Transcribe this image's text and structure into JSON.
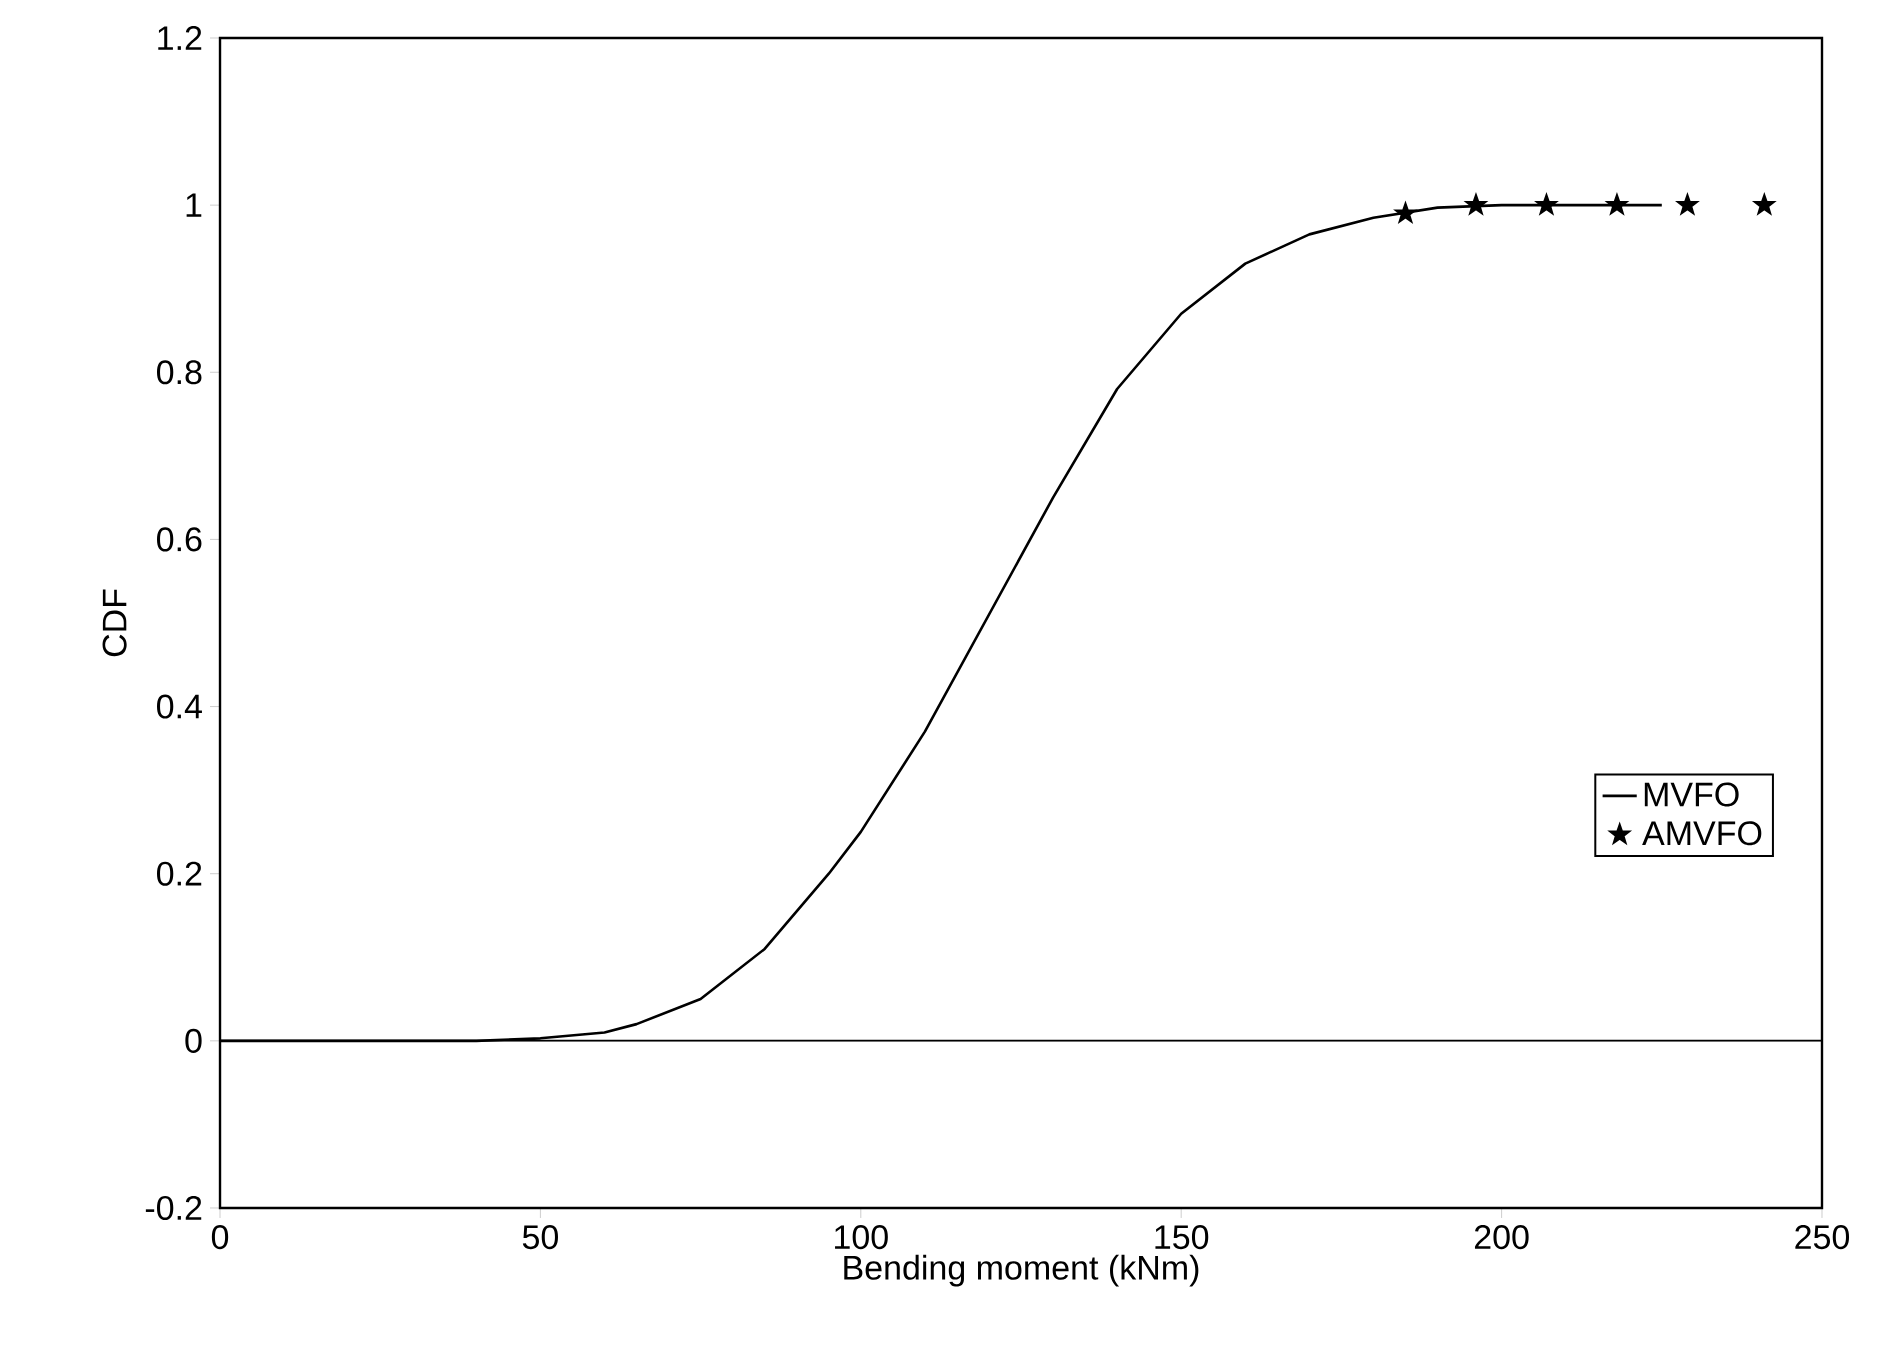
{
  "chart_data": {
    "type": "line",
    "xlabel": "Bending moment (kNm)",
    "ylabel": "CDF",
    "xlim": [
      0,
      250
    ],
    "ylim": [
      -0.2,
      1.2
    ],
    "xticks": [
      0,
      50,
      100,
      150,
      200,
      250
    ],
    "yticks": [
      -0.2,
      0,
      0.2,
      0.4,
      0.6,
      0.8,
      1,
      1.2
    ],
    "legend": "right",
    "grid": false,
    "ref_lines": [
      {
        "axis": "y",
        "value": 0,
        "color": "#000000"
      }
    ],
    "series": [
      {
        "name": "MVFO",
        "color": "#000000",
        "marker": "none",
        "line_style": "solid",
        "x": [
          0,
          40,
          50,
          60,
          65,
          75,
          85,
          95,
          100,
          110,
          120,
          130,
          140,
          150,
          160,
          170,
          180,
          190,
          200,
          225
        ],
        "values": [
          0,
          0,
          0.003,
          0.01,
          0.02,
          0.05,
          0.11,
          0.2,
          0.25,
          0.37,
          0.51,
          0.65,
          0.78,
          0.87,
          0.93,
          0.965,
          0.985,
          0.997,
          1.0,
          1.0
        ]
      },
      {
        "name": "AMVFO",
        "type": "scatter",
        "color": "#000000",
        "marker": "star",
        "x": [
          185,
          196,
          207,
          218,
          229,
          241
        ],
        "values": [
          0.99,
          1.0,
          1.0,
          1.0,
          1.0,
          1.0
        ]
      }
    ]
  }
}
